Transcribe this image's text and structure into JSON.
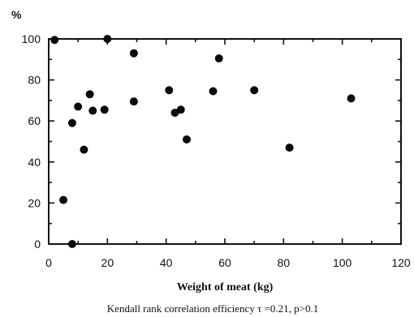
{
  "chart_data": {
    "type": "scatter",
    "ylabel": "%",
    "xlabel": "Weight of meat (kg)",
    "caption": "Kendall rank correlation efficiency  τ =0.21, p>0.1",
    "xlim": [
      0,
      120
    ],
    "ylim": [
      0,
      100
    ],
    "xticks": [
      0,
      20,
      40,
      60,
      80,
      100,
      120
    ],
    "yticks": [
      0,
      20,
      40,
      60,
      80,
      100
    ],
    "grid": false,
    "point_color": "#0a0a0a",
    "series": [
      {
        "x": [
          2,
          5,
          8,
          8,
          10,
          12,
          14,
          15,
          19,
          20,
          29,
          29,
          41,
          43,
          45,
          47,
          56,
          58,
          70,
          82,
          103
        ],
        "y": [
          99.5,
          21.5,
          59,
          0,
          67,
          46,
          73,
          65,
          65.5,
          100,
          93,
          69.5,
          75,
          64,
          65.5,
          51,
          74.5,
          90.5,
          75,
          47,
          71
        ]
      }
    ]
  }
}
